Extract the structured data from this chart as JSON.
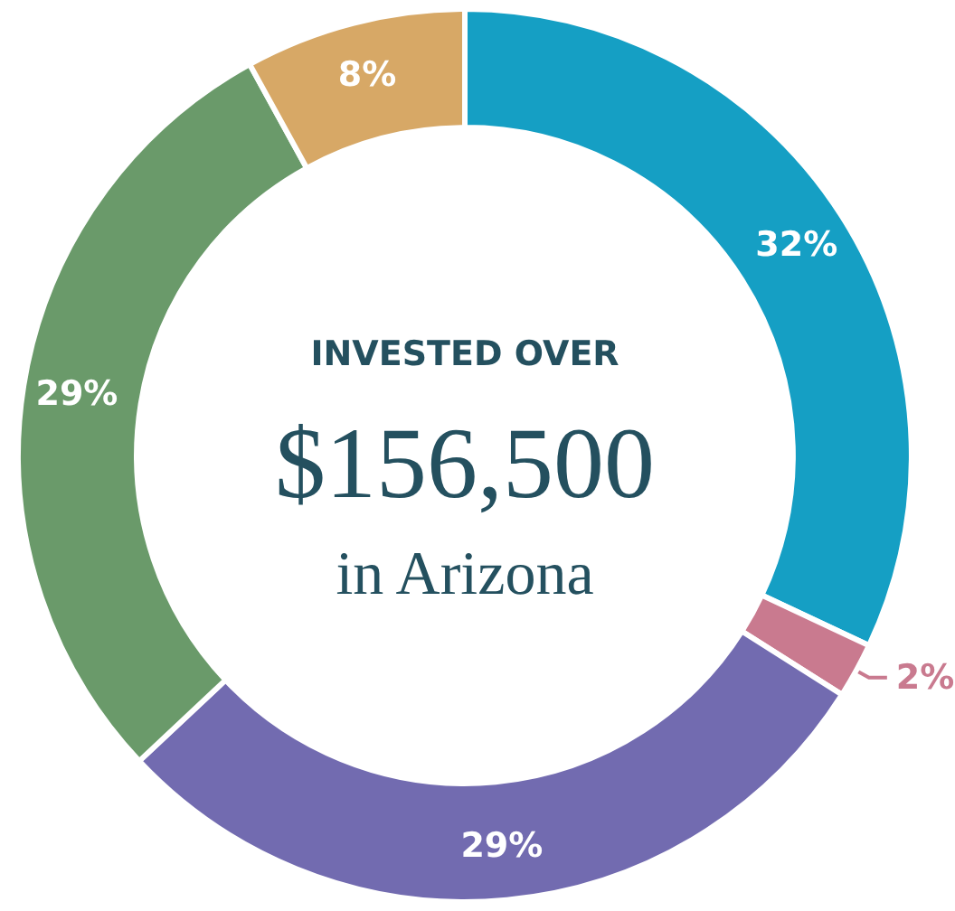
{
  "chart_data": {
    "type": "donut",
    "categories": [
      null,
      null,
      null,
      null,
      null
    ],
    "values": [
      32,
      2,
      29,
      29,
      8
    ],
    "colors": [
      "#159fc4",
      "#c97a8f",
      "#726bb0",
      "#6a9a6a",
      "#d7a866"
    ],
    "value_labels": [
      "32%",
      "2%",
      "29%",
      "29%",
      "8%"
    ],
    "annotations": [
      "INVESTED OVER",
      "$156,500",
      "in Arizona"
    ]
  }
}
